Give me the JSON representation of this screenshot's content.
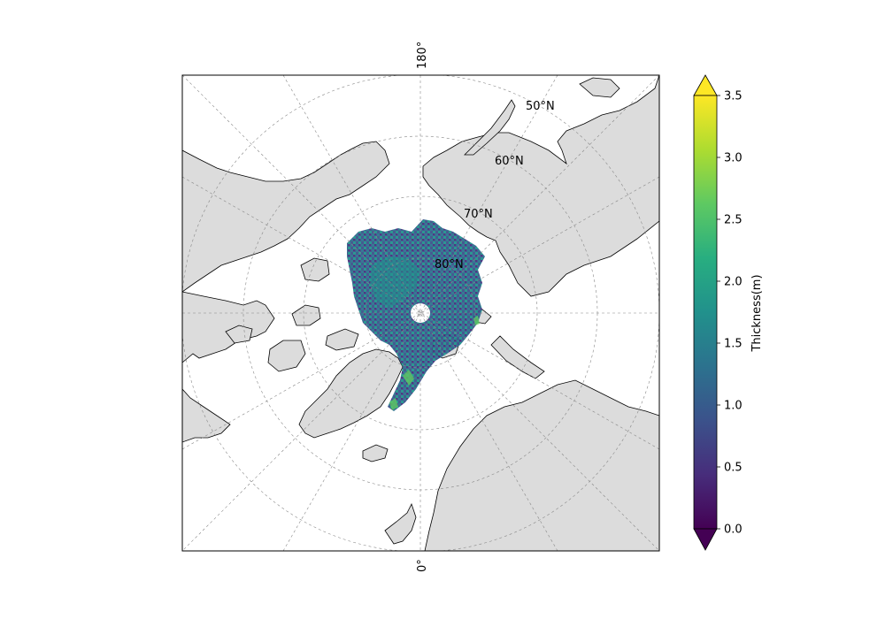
{
  "map": {
    "projection": "north-polar-stereographic",
    "longitude_labels": {
      "top": "180°",
      "bottom": "0°"
    },
    "latitude_labels": [
      "50°N",
      "60°N",
      "70°N",
      "80°N"
    ],
    "gridlines": true,
    "land_color": "#dcdcdc",
    "coastline_color": "#000000",
    "pole_hole_color": "#ffffff"
  },
  "colorbar": {
    "label": "Thickness(m)",
    "colormap": "viridis",
    "range": [
      0,
      3.5
    ],
    "extend": "both",
    "ticks": [
      "0.0",
      "0.5",
      "1.0",
      "1.5",
      "2.0",
      "2.5",
      "3.0",
      "3.5"
    ]
  }
}
